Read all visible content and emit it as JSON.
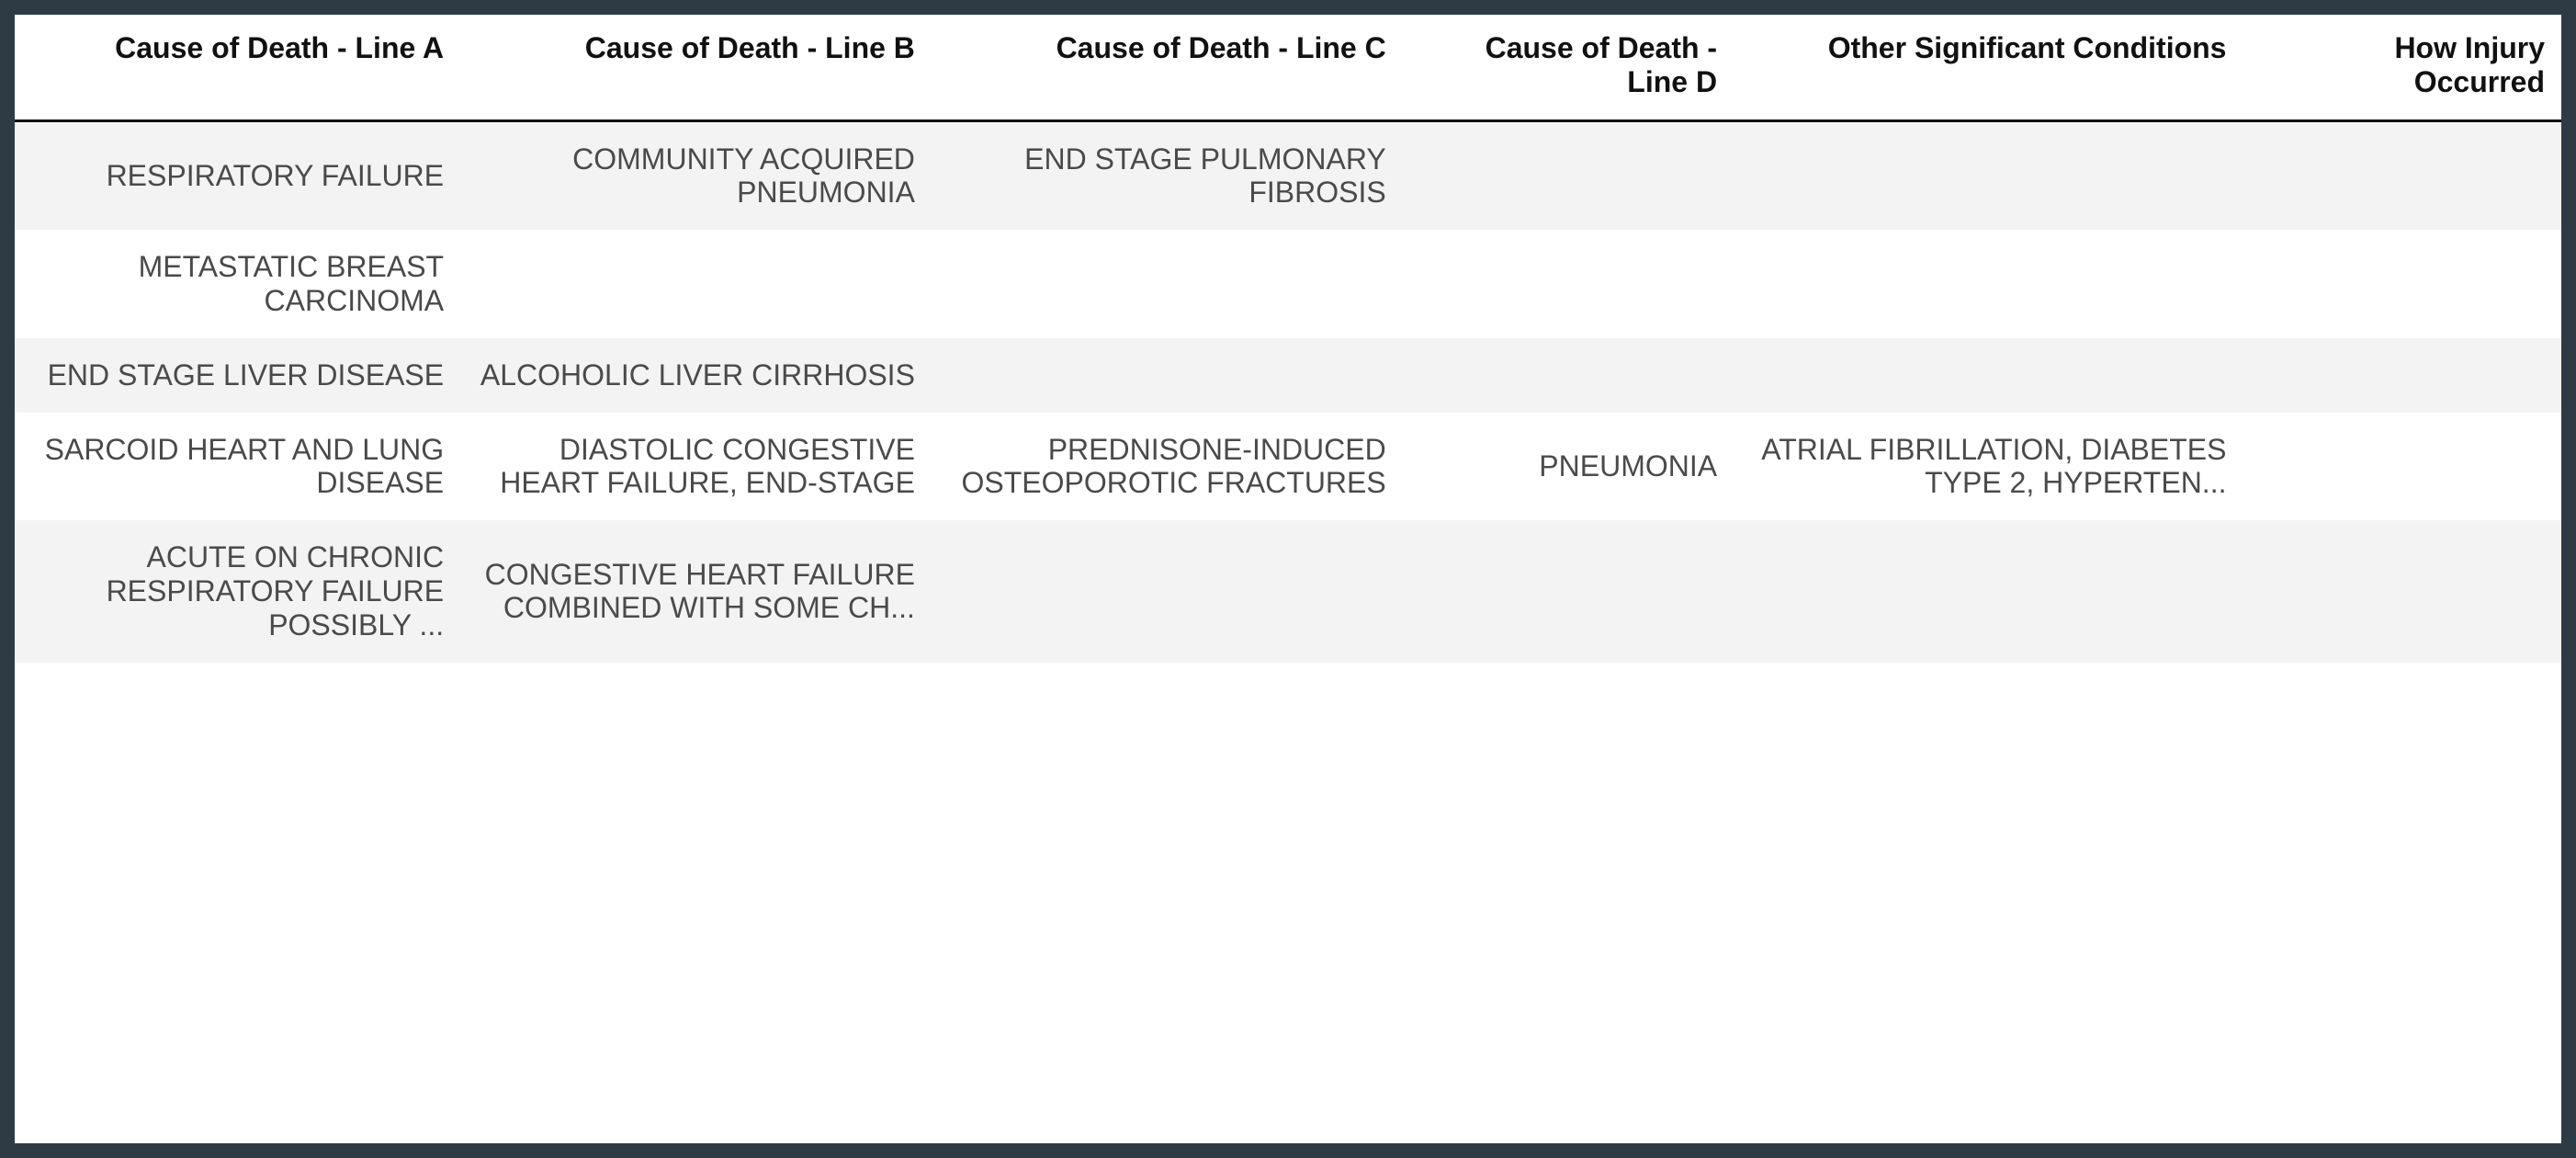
{
  "table": {
    "type": "table",
    "background_color": "#ffffff",
    "page_background_color": "#2f3b44",
    "header_text_color": "#111111",
    "cell_text_color": "#4a4a4a",
    "stripe_color": "#f3f3f3",
    "header_border_color": "#111111",
    "header_fontsize_pt": 24,
    "cell_fontsize_pt": 24,
    "header_font_weight": 700,
    "cell_text_align": "right",
    "column_widths_percent": [
      17.5,
      18.5,
      18.5,
      13,
      20,
      12.5
    ],
    "columns": [
      "Cause of Death - Line A",
      "Cause of Death - Line B",
      "Cause of Death - Line C",
      "Cause of Death - Line D",
      "Other Significant Conditions",
      "How Injury Occurred"
    ],
    "rows": [
      {
        "a": "RESPIRATORY FAILURE",
        "b": "COMMUNITY ACQUIRED PNEUMONIA",
        "c": "END STAGE PULMONARY FIBROSIS",
        "d": "",
        "e": "",
        "f": ""
      },
      {
        "a": "METASTATIC BREAST CARCINOMA",
        "b": "",
        "c": "",
        "d": "",
        "e": "",
        "f": ""
      },
      {
        "a": "END STAGE LIVER DISEASE",
        "b": "ALCOHOLIC LIVER CIRRHOSIS",
        "c": "",
        "d": "",
        "e": "",
        "f": ""
      },
      {
        "a": "SARCOID HEART AND LUNG DISEASE",
        "b": "DIASTOLIC CONGESTIVE HEART FAILURE, END-STAGE",
        "c": "PREDNISONE-INDUCED OSTEOPOROTIC FRACTURES",
        "d": "PNEUMONIA",
        "e": "ATRIAL FIBRILLATION, DIABETES TYPE 2, HYPERTEN...",
        "f": ""
      },
      {
        "a": "ACUTE ON CHRONIC RESPIRATORY FAILURE POSSIBLY ...",
        "b": "CONGESTIVE HEART FAILURE COMBINED WITH SOME CH...",
        "c": "",
        "d": "",
        "e": "",
        "f": ""
      }
    ]
  }
}
